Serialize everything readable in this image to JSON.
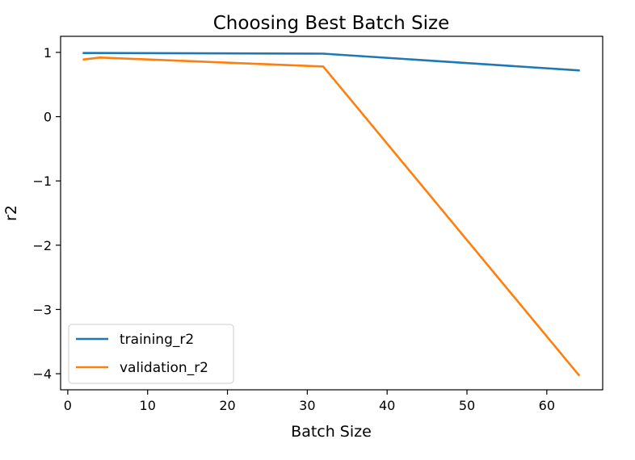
{
  "chart_data": {
    "type": "line",
    "title": "Choosing Best Batch Size",
    "xlabel": "Batch Size",
    "ylabel": "r2",
    "xlim": [
      -0.9,
      67.0
    ],
    "ylim": [
      -4.25,
      1.25
    ],
    "xticks": [
      0,
      10,
      20,
      30,
      40,
      50,
      60
    ],
    "yticks": [
      1,
      0,
      -1,
      -2,
      -3,
      -4
    ],
    "ytick_labels": [
      "1",
      "0",
      "−1",
      "−2",
      "−3",
      "−4"
    ],
    "grid": false,
    "legend_position": "lower-left",
    "series": [
      {
        "name": "training_r2",
        "color": "#1f77b4",
        "x": [
          2,
          4,
          32,
          64
        ],
        "y": [
          0.99,
          0.99,
          0.98,
          0.72
        ]
      },
      {
        "name": "validation_r2",
        "color": "#ff7f0e",
        "x": [
          2,
          4,
          32,
          64
        ],
        "y": [
          0.89,
          0.92,
          0.78,
          -4.02
        ]
      }
    ]
  }
}
